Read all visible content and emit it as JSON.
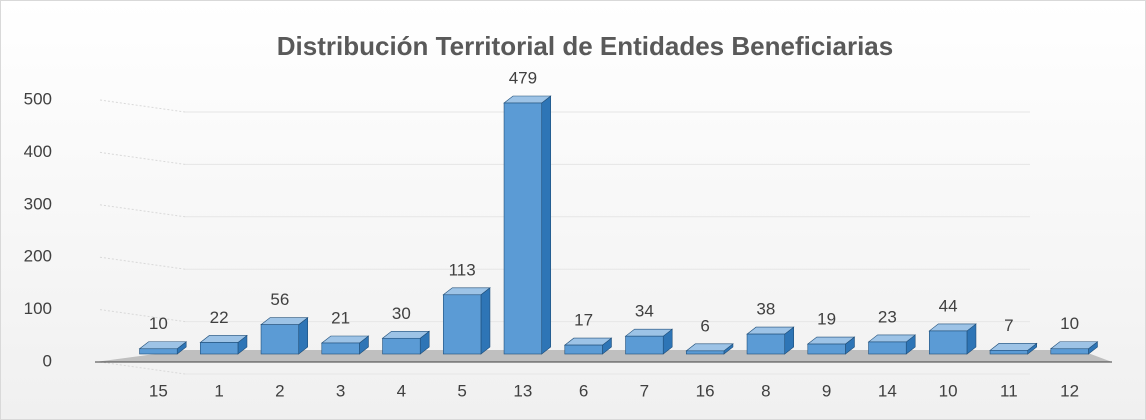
{
  "chart_data": {
    "type": "bar3d",
    "title": "Distribución Territorial de Entidades Beneficiarias",
    "categories": [
      "15",
      "1",
      "2",
      "3",
      "4",
      "5",
      "13",
      "6",
      "7",
      "16",
      "8",
      "9",
      "14",
      "10",
      "11",
      "12"
    ],
    "values": [
      10,
      22,
      56,
      21,
      30,
      113,
      479,
      17,
      34,
      6,
      38,
      19,
      23,
      44,
      7,
      10
    ],
    "color": "#5b9bd5",
    "ylim": [
      0,
      500
    ],
    "yticks": [
      0,
      100,
      200,
      300,
      400,
      500
    ],
    "grid": true
  }
}
